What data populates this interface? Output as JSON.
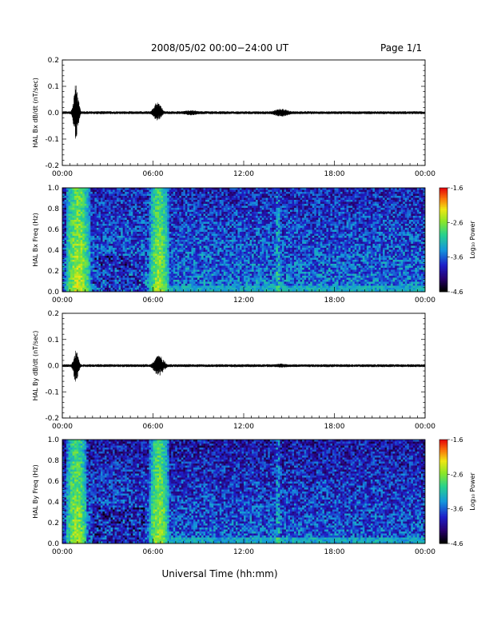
{
  "header": {
    "title": "2008/05/02   00:00−24:00 UT",
    "page": "Page 1/1"
  },
  "xlabel": "Universal Time (hh:mm)",
  "time_ticks": [
    "00:00",
    "06:00",
    "12:00",
    "18:00",
    "00:00"
  ],
  "colorbar": {
    "label": "Log₁₀ Power",
    "ticks": [
      "-1.6",
      "-2.6",
      "-3.6",
      "-4.6"
    ],
    "range": [
      -4.6,
      -1.6
    ]
  },
  "chart_data": [
    {
      "type": "line",
      "ylabel": "HAL Bx dB/dt (nT/sec)",
      "xlim_hours": [
        0,
        24
      ],
      "ylim": [
        -0.2,
        0.2
      ],
      "yticks": [
        "0.2",
        "0.1",
        "0.0",
        "-0.1",
        "-0.2"
      ],
      "baseline_amplitude": 0.004,
      "bursts": [
        {
          "center_hours": 0.9,
          "width_hours": 0.3,
          "peak": 0.11,
          "trough": -0.1
        },
        {
          "center_hours": 6.3,
          "width_hours": 0.5,
          "peak": 0.04,
          "trough": -0.03
        },
        {
          "center_hours": 8.5,
          "width_hours": 1.0,
          "peak": 0.01,
          "trough": -0.01
        },
        {
          "center_hours": 14.5,
          "width_hours": 1.0,
          "peak": 0.015,
          "trough": -0.015
        }
      ]
    },
    {
      "type": "heatmap",
      "ylabel": "HAL Bx Freq (Hz)",
      "xlim_hours": [
        0,
        24
      ],
      "ylim": [
        0.0,
        1.0
      ],
      "yticks": [
        "1.0",
        "0.8",
        "0.6",
        "0.4",
        "0.2",
        "0.0"
      ],
      "zlim": [
        -4.6,
        -1.6
      ],
      "background_log_power": -3.6,
      "hot_bands": [
        {
          "start_hours": 0.3,
          "end_hours": 1.8,
          "log_power": -2.4
        },
        {
          "start_hours": 5.8,
          "end_hours": 7.0,
          "log_power": -2.5
        }
      ],
      "low_freq_band": {
        "start_hours": 7.0,
        "end_hours": 24.0,
        "max_freq": 0.05,
        "log_power": -3.3
      },
      "faint_line_hours": 14.3
    },
    {
      "type": "line",
      "ylabel": "HAL By dB/dt (nT/sec)",
      "xlim_hours": [
        0,
        24
      ],
      "ylim": [
        -0.2,
        0.2
      ],
      "yticks": [
        "0.2",
        "0.1",
        "0.0",
        "-0.1",
        "-0.2"
      ],
      "baseline_amplitude": 0.004,
      "bursts": [
        {
          "center_hours": 0.9,
          "width_hours": 0.3,
          "peak": 0.06,
          "trough": -0.07
        },
        {
          "center_hours": 6.4,
          "width_hours": 0.6,
          "peak": 0.04,
          "trough": -0.04
        },
        {
          "center_hours": 14.5,
          "width_hours": 1.0,
          "peak": 0.008,
          "trough": -0.008
        }
      ]
    },
    {
      "type": "heatmap",
      "ylabel": "HAL By Freq (Hz)",
      "xlim_hours": [
        0,
        24
      ],
      "ylim": [
        0.0,
        1.0
      ],
      "yticks": [
        "1.0",
        "0.8",
        "0.6",
        "0.4",
        "0.2",
        "0.0"
      ],
      "zlim": [
        -4.6,
        -1.6
      ],
      "background_log_power": -3.7,
      "hot_bands": [
        {
          "start_hours": 0.3,
          "end_hours": 1.6,
          "log_power": -2.5
        },
        {
          "start_hours": 5.8,
          "end_hours": 7.0,
          "log_power": -2.5
        }
      ],
      "low_freq_band": {
        "start_hours": 7.0,
        "end_hours": 24.0,
        "max_freq": 0.05,
        "log_power": -3.3
      },
      "faint_line_hours": 14.3
    }
  ]
}
